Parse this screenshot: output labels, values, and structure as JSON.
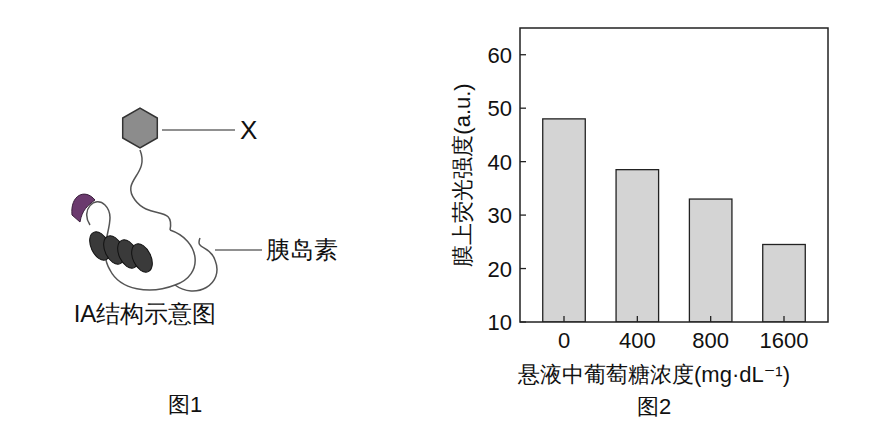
{
  "chart_data": {
    "type": "bar",
    "title": "图2",
    "categories": [
      "0",
      "400",
      "800",
      "1600"
    ],
    "values": [
      48,
      38.5,
      33,
      24.5
    ],
    "color": "#d4d4d4",
    "x_label": "悬液中葡萄糖浓度(mg·dL⁻¹)",
    "y_label": "膜上荧光强度(a.u.)",
    "ylim": [
      10,
      65
    ],
    "yticks": [
      10,
      20,
      30,
      40,
      50,
      60
    ],
    "grid": false
  },
  "diagram": {
    "labels": [
      "X",
      "胰岛素"
    ],
    "title": "IA结构示意图",
    "caption": "图1"
  }
}
